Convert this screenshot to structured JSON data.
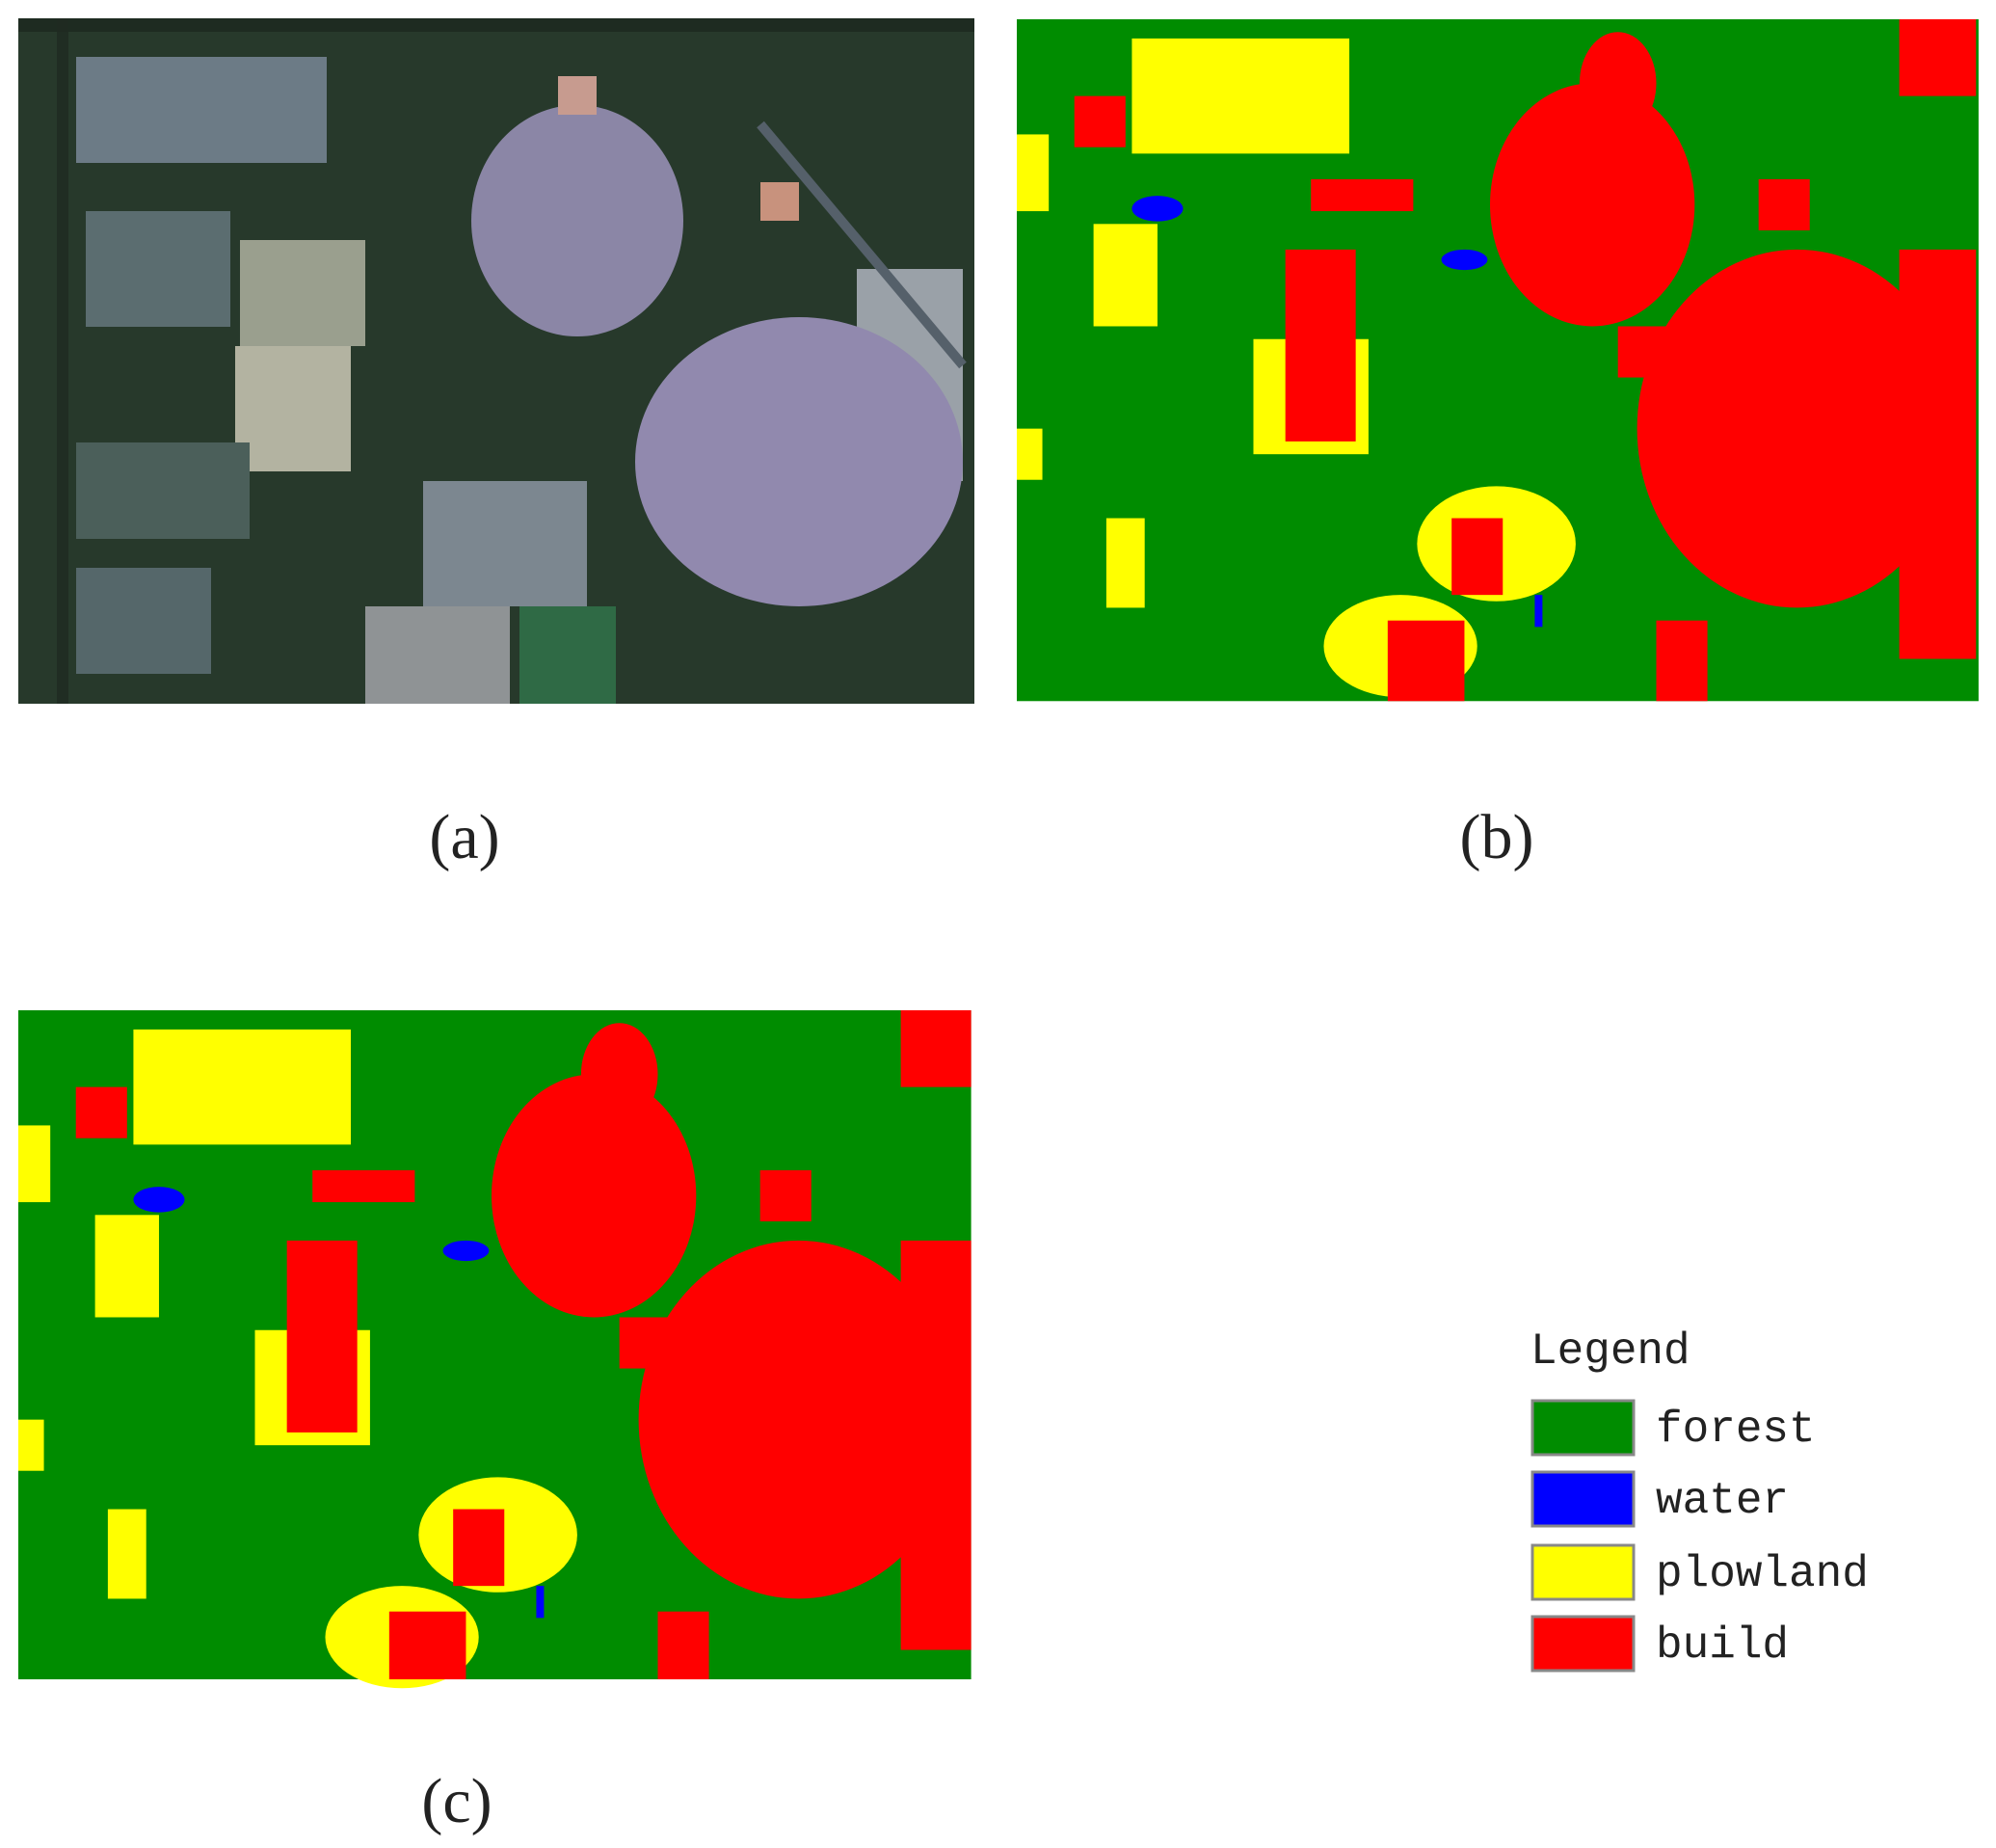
{
  "panels": [
    {
      "label": "(a)"
    },
    {
      "label": "(b)"
    },
    {
      "label": "(c)"
    }
  ],
  "legend": {
    "title": "Legend",
    "items": [
      {
        "name": "forest",
        "color": "#008c00"
      },
      {
        "name": "water",
        "color": "#0000ff"
      },
      {
        "name": "plowland",
        "color": "#ffff00"
      },
      {
        "name": "build",
        "color": "#ff0000"
      }
    ]
  }
}
